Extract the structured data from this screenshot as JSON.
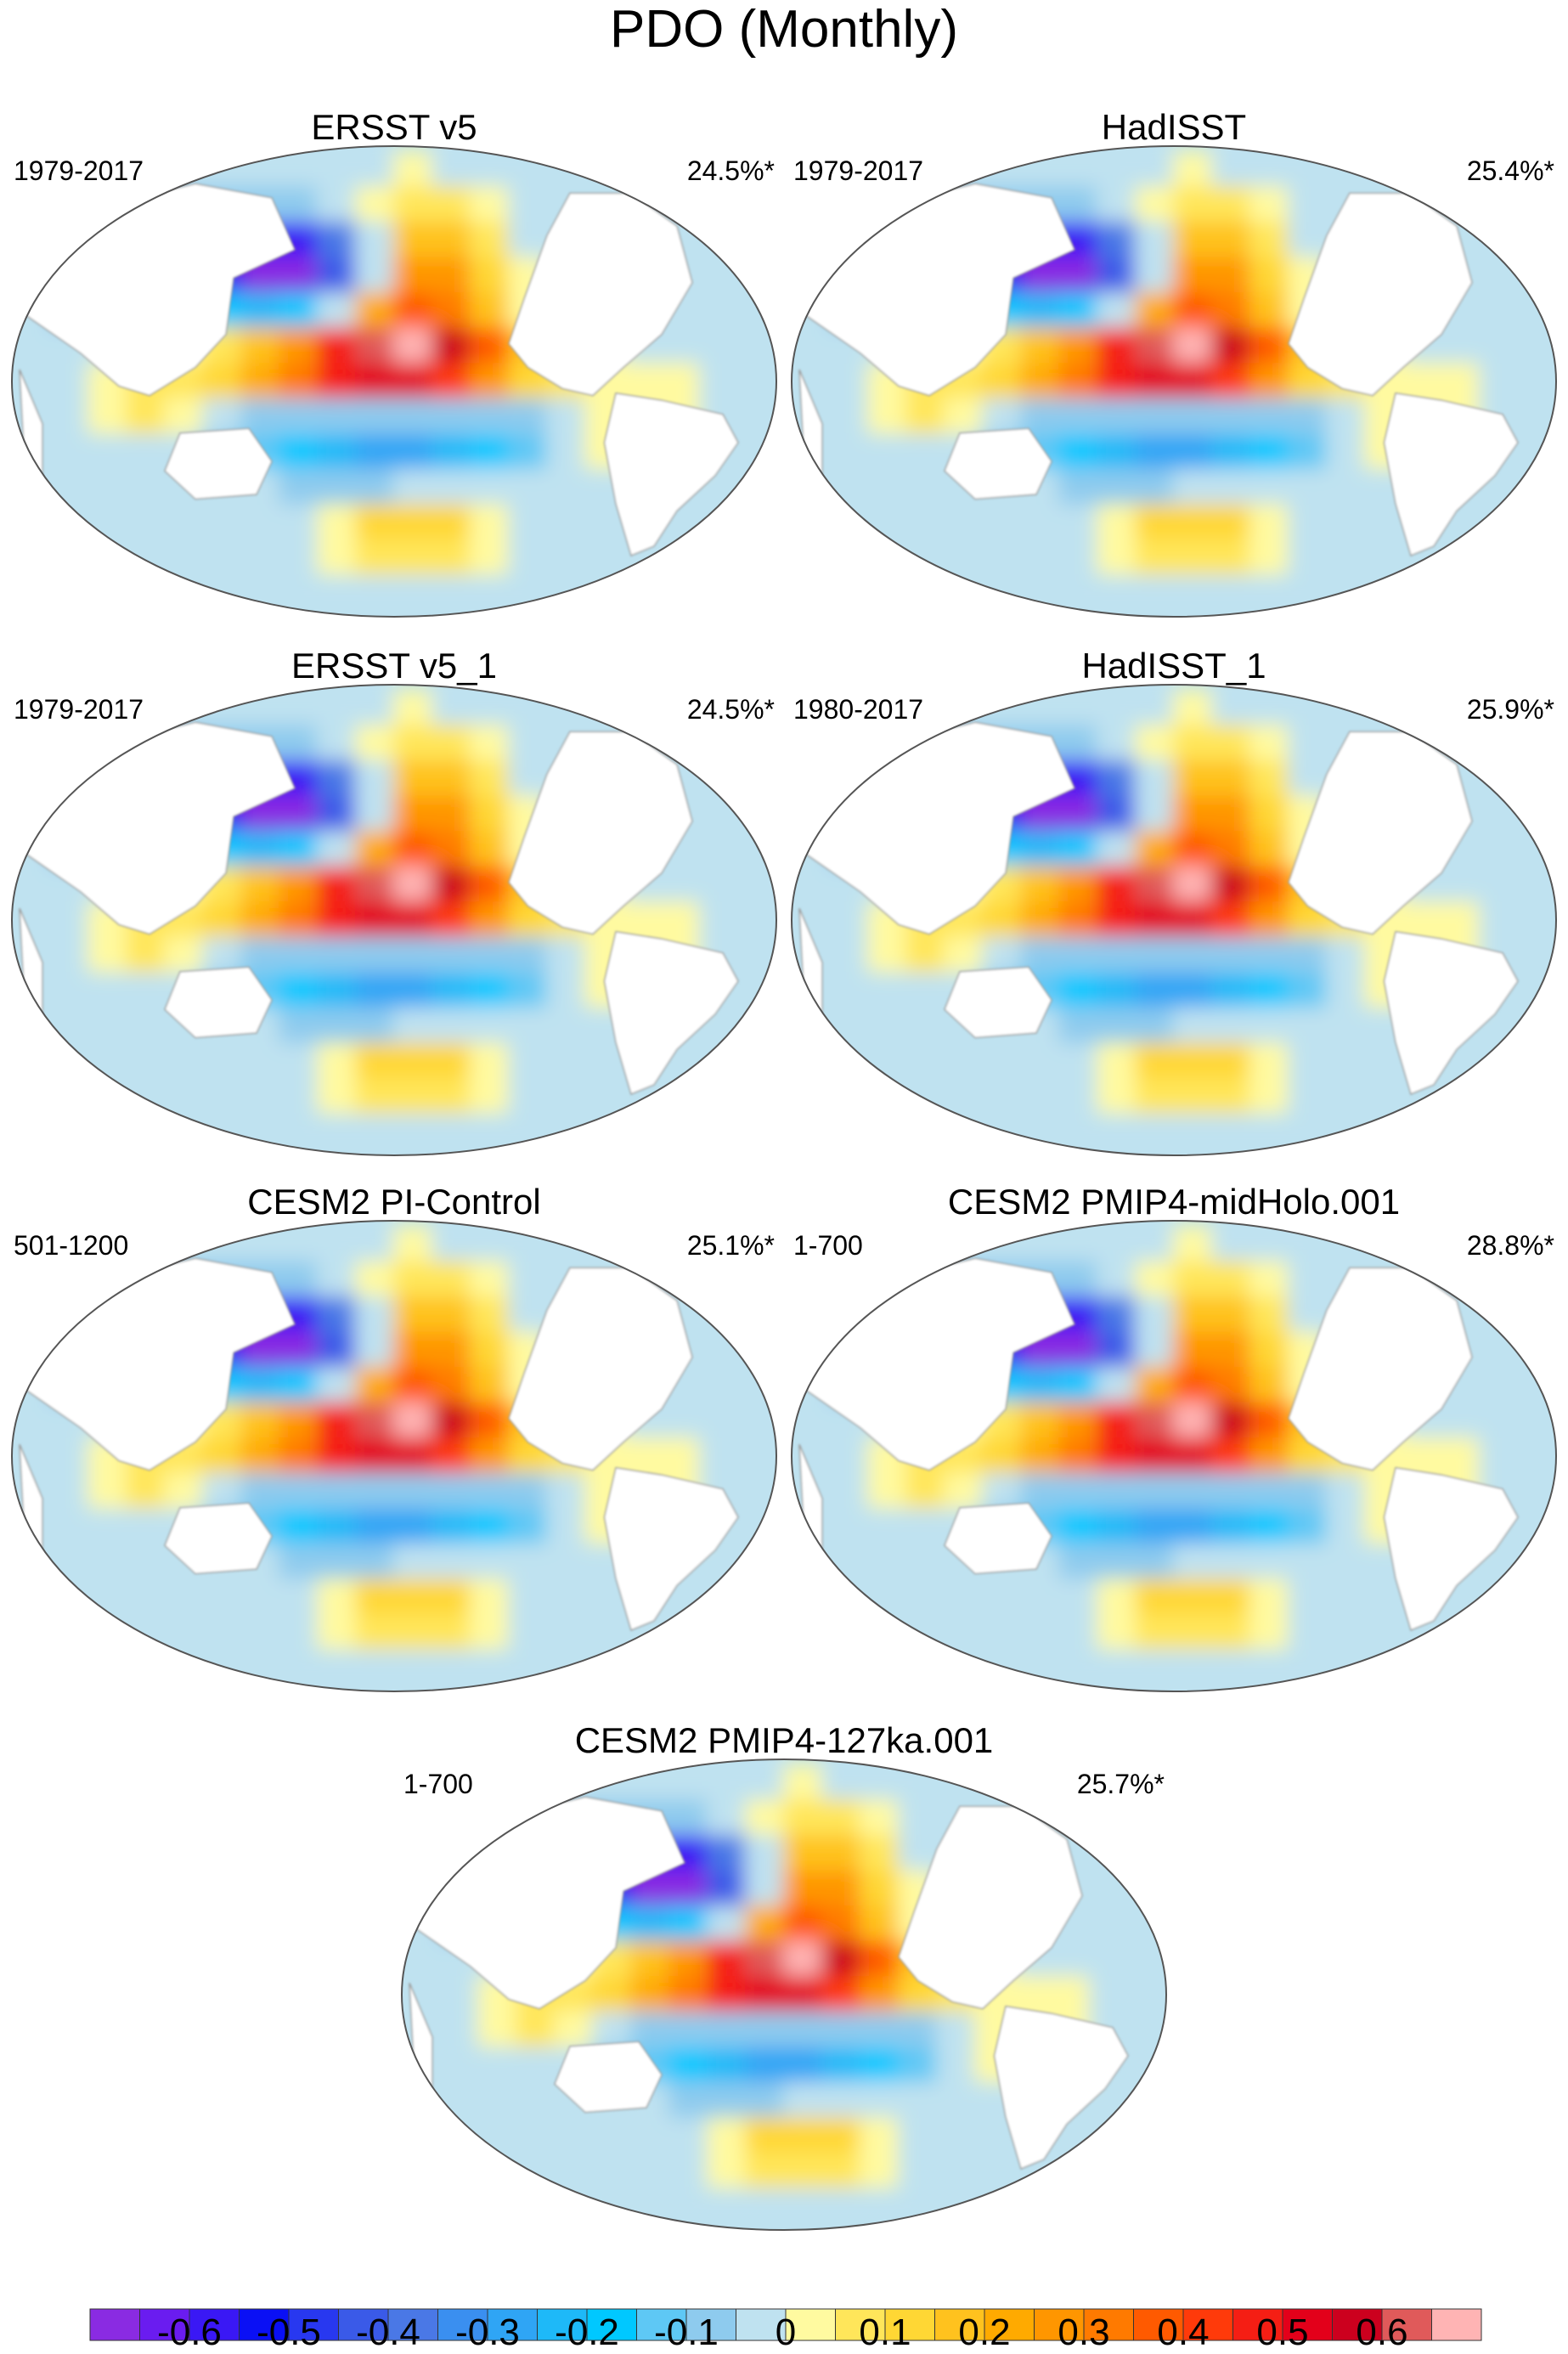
{
  "figure_title": "PDO (Monthly)",
  "colors": {
    "land": "#ffffff",
    "outline": "#555555",
    "coast": "#9a9a9a"
  },
  "chart_data": {
    "type": "heatmap",
    "title": "PDO (Monthly)",
    "panels": [
      {
        "title": "ERSST v5",
        "period": "1979-2017",
        "variance": "24.5%*"
      },
      {
        "title": "HadISST",
        "period": "1979-2017",
        "variance": "25.4%*"
      },
      {
        "title": "ERSST v5_1",
        "period": "1979-2017",
        "variance": "24.5%*"
      },
      {
        "title": "HadISST_1",
        "period": "1980-2017",
        "variance": "25.9%*"
      },
      {
        "title": "CESM2 PI-Control",
        "period": "501-1200",
        "variance": "25.1%*"
      },
      {
        "title": "CESM2 PMIP4-midHolo.001",
        "period": "1-700",
        "variance": "28.8%*"
      },
      {
        "title": "CESM2 PMIP4-127ka.001",
        "period": "1-700",
        "variance": "25.7%*"
      }
    ],
    "colorbar": {
      "range": [
        -0.7,
        0.7
      ],
      "step": 0.05,
      "tick_labels": [
        "-0.6",
        "-0.5",
        "-0.4",
        "-0.3",
        "-0.2",
        "-0.1",
        "0",
        "0.1",
        "0.2",
        "0.3",
        "0.4",
        "0.5",
        "0.6"
      ],
      "tick_values": [
        -0.6,
        -0.5,
        -0.4,
        -0.3,
        -0.2,
        -0.1,
        0,
        0.1,
        0.2,
        0.3,
        0.4,
        0.5,
        0.6
      ],
      "colors": [
        "#8a2be2",
        "#6a1cf0",
        "#3a18f5",
        "#0a10f5",
        "#2838f0",
        "#3a5ae8",
        "#4a78e6",
        "#3a8ff0",
        "#2fa5f5",
        "#1eb9f8",
        "#00c8ff",
        "#5ec8f5",
        "#8ecbee",
        "#bfe2f0",
        "#fffaa0",
        "#ffe65a",
        "#ffd734",
        "#ffc21e",
        "#ffaa00",
        "#ff9600",
        "#ff7a00",
        "#ff5a00",
        "#ff3a0a",
        "#f51e14",
        "#e3001a",
        "#cc001e",
        "#e05a5a",
        "#ffb4b4"
      ]
    }
  }
}
